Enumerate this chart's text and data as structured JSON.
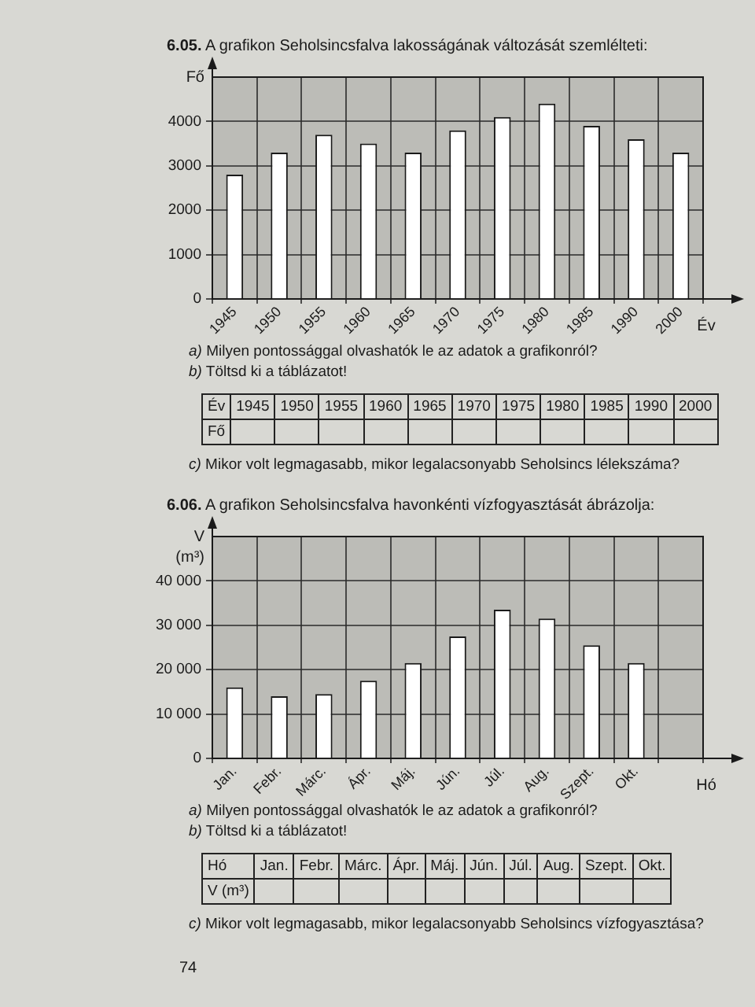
{
  "chart_data": [
    {
      "type": "bar",
      "title": "6.05. A grafikon Seholsincsfalva lakosságának változását szemlélteti:",
      "xlabel": "Év",
      "ylabel": "Fő",
      "categories": [
        "1945",
        "1950",
        "1955",
        "1960",
        "1965",
        "1970",
        "1975",
        "1980",
        "1985",
        "1990",
        "2000"
      ],
      "values": [
        2800,
        3300,
        3700,
        3500,
        3300,
        3800,
        4100,
        4400,
        3900,
        3600,
        3300
      ],
      "color": "#ffffff",
      "ylim": [
        0,
        5000
      ],
      "yticks": [
        0,
        1000,
        2000,
        3000,
        4000
      ],
      "grid": true,
      "annotations": [
        "a) Milyen pontossággal olvashatók le az adatok a grafikonról?",
        "b) Töltsd ki a táblázatot!",
        "c) Mikor volt legmagasabb, mikor legalacsonyabb Seholsincs lélekszáma?"
      ]
    },
    {
      "type": "bar",
      "title": "6.06. A grafikon Seholsincsfalva havonkénti vízfogyasztását ábrázolja:",
      "xlabel": "Hó",
      "ylabel": "V (m³)",
      "categories": [
        "Jan.",
        "Febr.",
        "Márc.",
        "Ápr.",
        "Máj.",
        "Jún.",
        "Júl.",
        "Aug.",
        "Szept.",
        "Okt.",
        null
      ],
      "values": [
        16000,
        14000,
        14500,
        17500,
        21500,
        27500,
        33500,
        31500,
        25500,
        21500,
        null
      ],
      "color": "#ffffff",
      "ylim": [
        0,
        50000
      ],
      "yticks": [
        0,
        {
          "value": 10000,
          "label": "10 000"
        },
        {
          "value": 20000,
          "label": "20 000"
        },
        {
          "value": 30000,
          "label": "30 000"
        },
        {
          "value": 40000,
          "label": "40 000"
        }
      ],
      "grid": true,
      "annotations": [
        "a) Milyen pontossággal olvashatók le az adatok a grafikonról?",
        "b) Töltsd ki a táblázatot!",
        "c) Mikor volt legmagasabb, mikor legalacsonyabb Seholsincs vízfogyasztása?",
        "74"
      ]
    }
  ]
}
